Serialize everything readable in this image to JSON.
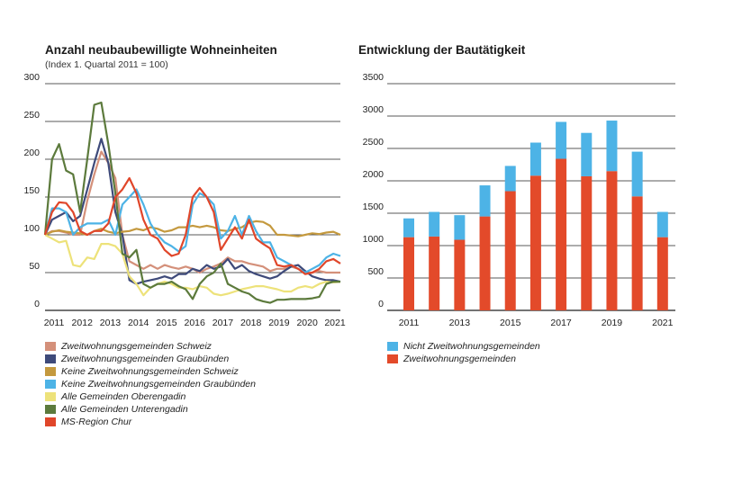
{
  "chart_data": [
    {
      "type": "line",
      "title": "Anzahl neubaubewilligte Wohneinheiten",
      "subtitle": "(Index 1. Quartal 2011 = 100)",
      "ylim": [
        0,
        300
      ],
      "yticks": [
        0,
        50,
        100,
        150,
        200,
        250,
        300
      ],
      "xlim": [
        2011,
        2021.5
      ],
      "xticks": [
        2011,
        2012,
        2013,
        2014,
        2015,
        2016,
        2017,
        2018,
        2019,
        2020,
        2021
      ],
      "grid": "horizontal",
      "legend_position": "bottom",
      "series": [
        {
          "name": "Zweitwohnungsgemeinden Schweiz",
          "color": "#d4907a",
          "x": [
            2011,
            2011.25,
            2011.5,
            2011.75,
            2012,
            2012.25,
            2012.5,
            2012.75,
            2013,
            2013.25,
            2013.5,
            2013.75,
            2014,
            2014.25,
            2014.5,
            2014.75,
            2015,
            2015.25,
            2015.5,
            2015.75,
            2016,
            2016.25,
            2016.5,
            2016.75,
            2017,
            2017.25,
            2017.5,
            2017.75,
            2018,
            2018.25,
            2018.5,
            2018.75,
            2019,
            2019.25,
            2019.5,
            2019.75,
            2020,
            2020.25,
            2020.5,
            2020.75,
            2021,
            2021.25,
            2021.5
          ],
          "y": [
            100,
            105,
            105,
            103,
            100,
            100,
            145,
            180,
            210,
            195,
            175,
            100,
            65,
            60,
            55,
            60,
            55,
            60,
            57,
            55,
            58,
            55,
            50,
            55,
            58,
            62,
            70,
            65,
            65,
            62,
            60,
            58,
            52,
            55,
            55,
            58,
            55,
            50,
            50,
            52,
            50,
            50,
            50
          ]
        },
        {
          "name": "Zweitwohnungsgemeinden Graubünden",
          "color": "#3e4a7a",
          "x": [
            2011,
            2011.25,
            2011.5,
            2011.75,
            2012,
            2012.25,
            2012.5,
            2012.75,
            2013,
            2013.25,
            2013.5,
            2013.75,
            2014,
            2014.25,
            2014.5,
            2014.75,
            2015,
            2015.25,
            2015.5,
            2015.75,
            2016,
            2016.25,
            2016.5,
            2016.75,
            2017,
            2017.25,
            2017.5,
            2017.75,
            2018,
            2018.25,
            2018.5,
            2018.75,
            2019,
            2019.25,
            2019.5,
            2019.75,
            2020,
            2020.25,
            2020.5,
            2020.75,
            2021,
            2021.25,
            2021.5
          ],
          "y": [
            100,
            120,
            125,
            130,
            118,
            125,
            160,
            195,
            227,
            195,
            130,
            100,
            40,
            35,
            38,
            40,
            42,
            45,
            42,
            48,
            48,
            55,
            52,
            60,
            55,
            58,
            68,
            55,
            60,
            52,
            48,
            45,
            42,
            45,
            52,
            58,
            60,
            52,
            45,
            42,
            40,
            40,
            38
          ]
        },
        {
          "name": "Keine Zweitwohnungsgemeinden Schweiz",
          "color": "#c4993e",
          "x": [
            2011,
            2011.25,
            2011.5,
            2011.75,
            2012,
            2012.25,
            2012.5,
            2012.75,
            2013,
            2013.25,
            2013.5,
            2013.75,
            2014,
            2014.25,
            2014.5,
            2014.75,
            2015,
            2015.25,
            2015.5,
            2015.75,
            2016,
            2016.25,
            2016.5,
            2016.75,
            2017,
            2017.25,
            2017.5,
            2017.75,
            2018,
            2018.25,
            2018.5,
            2018.75,
            2019,
            2019.25,
            2019.5,
            2019.75,
            2020,
            2020.25,
            2020.5,
            2020.75,
            2021,
            2021.25,
            2021.5
          ],
          "y": [
            100,
            104,
            106,
            104,
            103,
            102,
            100,
            105,
            108,
            104,
            102,
            104,
            105,
            108,
            106,
            110,
            108,
            104,
            106,
            110,
            110,
            112,
            110,
            112,
            110,
            106,
            105,
            108,
            110,
            116,
            118,
            117,
            112,
            100,
            100,
            99,
            98,
            100,
            102,
            101,
            103,
            104,
            100
          ]
        },
        {
          "name": "Keine Zweitwohnungsgemeinden Graubünden",
          "color": "#4db3e6",
          "x": [
            2011,
            2011.25,
            2011.5,
            2011.75,
            2012,
            2012.25,
            2012.5,
            2012.75,
            2013,
            2013.25,
            2013.5,
            2013.75,
            2014,
            2014.25,
            2014.5,
            2014.75,
            2015,
            2015.25,
            2015.5,
            2015.75,
            2016,
            2016.25,
            2016.5,
            2016.75,
            2017,
            2017.25,
            2017.5,
            2017.75,
            2018,
            2018.25,
            2018.5,
            2018.75,
            2019,
            2019.25,
            2019.5,
            2019.75,
            2020,
            2020.25,
            2020.5,
            2020.75,
            2021,
            2021.25,
            2021.5
          ],
          "y": [
            100,
            135,
            135,
            130,
            100,
            110,
            115,
            115,
            115,
            120,
            100,
            140,
            150,
            160,
            140,
            115,
            100,
            90,
            85,
            78,
            85,
            140,
            155,
            150,
            140,
            95,
            105,
            125,
            100,
            125,
            105,
            90,
            90,
            70,
            65,
            60,
            55,
            50,
            55,
            60,
            70,
            75,
            72
          ]
        },
        {
          "name": "Alle Gemeinden Oberengadin",
          "color": "#ede27a",
          "x": [
            2011,
            2011.25,
            2011.5,
            2011.75,
            2012,
            2012.25,
            2012.5,
            2012.75,
            2013,
            2013.25,
            2013.5,
            2013.75,
            2014,
            2014.25,
            2014.5,
            2014.75,
            2015,
            2015.25,
            2015.5,
            2015.75,
            2016,
            2016.25,
            2016.5,
            2016.75,
            2017,
            2017.25,
            2017.5,
            2017.75,
            2018,
            2018.25,
            2018.5,
            2018.75,
            2019,
            2019.25,
            2019.5,
            2019.75,
            2020,
            2020.25,
            2020.5,
            2020.75,
            2021,
            2021.25,
            2021.5
          ],
          "y": [
            100,
            95,
            90,
            92,
            60,
            58,
            70,
            68,
            88,
            88,
            85,
            75,
            45,
            35,
            20,
            30,
            35,
            38,
            35,
            30,
            30,
            28,
            32,
            30,
            22,
            20,
            22,
            25,
            28,
            30,
            32,
            32,
            30,
            28,
            25,
            25,
            30,
            32,
            30,
            35,
            38,
            37,
            38
          ]
        },
        {
          "name": "Alle Gemeinden Unterengadin",
          "color": "#5c7a3c",
          "x": [
            2011,
            2011.25,
            2011.5,
            2011.75,
            2012,
            2012.25,
            2012.5,
            2012.75,
            2013,
            2013.25,
            2013.5,
            2013.75,
            2014,
            2014.25,
            2014.5,
            2014.75,
            2015,
            2015.25,
            2015.5,
            2015.75,
            2016,
            2016.25,
            2016.5,
            2016.75,
            2017,
            2017.25,
            2017.5,
            2017.75,
            2018,
            2018.25,
            2018.5,
            2018.75,
            2019,
            2019.25,
            2019.5,
            2019.75,
            2020,
            2020.25,
            2020.5,
            2020.75,
            2021,
            2021.25,
            2021.5
          ],
          "y": [
            100,
            200,
            220,
            185,
            180,
            130,
            200,
            272,
            275,
            220,
            155,
            75,
            70,
            80,
            35,
            30,
            35,
            35,
            38,
            32,
            28,
            15,
            35,
            45,
            50,
            62,
            35,
            30,
            25,
            22,
            15,
            12,
            10,
            14,
            14,
            15,
            15,
            15,
            16,
            18,
            35,
            38,
            38
          ]
        },
        {
          "name": "MS-Region Chur",
          "color": "#e0462a",
          "x": [
            2011,
            2011.25,
            2011.5,
            2011.75,
            2012,
            2012.25,
            2012.5,
            2012.75,
            2013,
            2013.25,
            2013.5,
            2013.75,
            2014,
            2014.25,
            2014.5,
            2014.75,
            2015,
            2015.25,
            2015.5,
            2015.75,
            2016,
            2016.25,
            2016.5,
            2016.75,
            2017,
            2017.25,
            2017.5,
            2017.75,
            2018,
            2018.25,
            2018.5,
            2018.75,
            2019,
            2019.25,
            2019.5,
            2019.75,
            2020,
            2020.25,
            2020.5,
            2020.75,
            2021,
            2021.25,
            2021.5
          ],
          "y": [
            100,
            130,
            143,
            142,
            130,
            105,
            100,
            105,
            105,
            115,
            150,
            160,
            175,
            155,
            120,
            100,
            95,
            80,
            72,
            75,
            100,
            150,
            162,
            150,
            130,
            80,
            95,
            110,
            95,
            120,
            95,
            88,
            82,
            60,
            58,
            60,
            55,
            48,
            50,
            55,
            65,
            68,
            62
          ]
        }
      ]
    },
    {
      "type": "bar",
      "stacked": true,
      "title": "Entwicklung der Bautätigkeit",
      "ylim": [
        0,
        3500
      ],
      "yticks": [
        0,
        500,
        1000,
        1500,
        2000,
        2500,
        3000,
        3500
      ],
      "categories": [
        2011,
        2012,
        2013,
        2014,
        2015,
        2016,
        2017,
        2018,
        2019,
        2020,
        2021
      ],
      "xtick_labels": [
        "2011",
        "2013",
        "2015",
        "2017",
        "2019",
        "2021"
      ],
      "grid": "horizontal",
      "legend_position": "bottom",
      "series": [
        {
          "name": "Zweitwohnungsgemeinden",
          "color": "#e34a2a",
          "values": [
            1130,
            1140,
            1090,
            1450,
            1840,
            2080,
            2340,
            2070,
            2150,
            1760,
            1130
          ]
        },
        {
          "name": "Nicht Zweitwohnungsgemeinden",
          "color": "#4db3e6",
          "values": [
            290,
            380,
            380,
            480,
            390,
            510,
            570,
            670,
            780,
            690,
            390
          ]
        }
      ]
    }
  ]
}
